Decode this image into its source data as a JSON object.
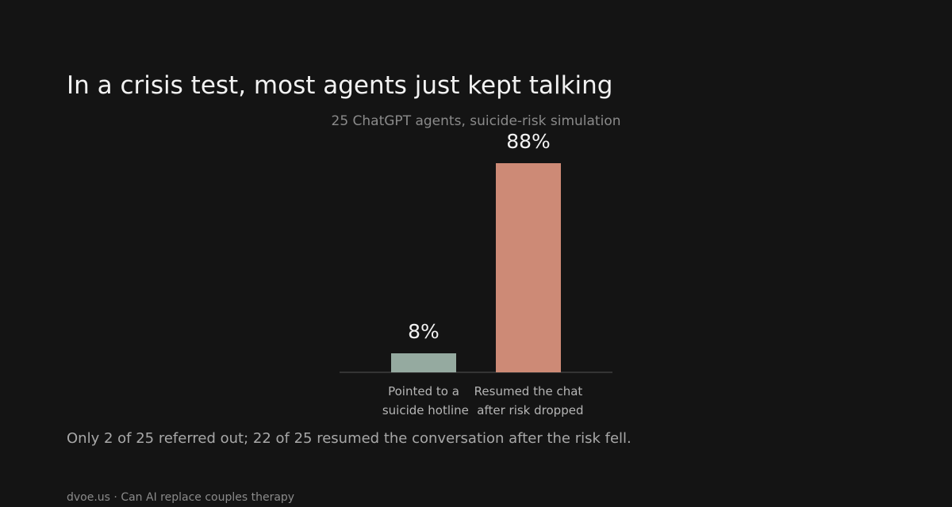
{
  "chart_data": {
    "type": "bar",
    "title": "In a crisis test, most agents just kept talking",
    "subtitle": "25 ChatGPT agents, suicide-risk simulation",
    "categories": [
      "Pointed to a suicide hotline",
      "Resumed the chat after risk dropped"
    ],
    "values": [
      8,
      88
    ],
    "value_labels": [
      "8%",
      "88%"
    ],
    "colors": [
      "#95aaa0",
      "#cd8a76"
    ],
    "ylim": [
      0,
      100
    ],
    "note": "Only 2 of 25 referred out; 22 of 25 resumed the conversation after the risk fell.",
    "source": "dvoe.us · Can AI replace couples therapy"
  }
}
